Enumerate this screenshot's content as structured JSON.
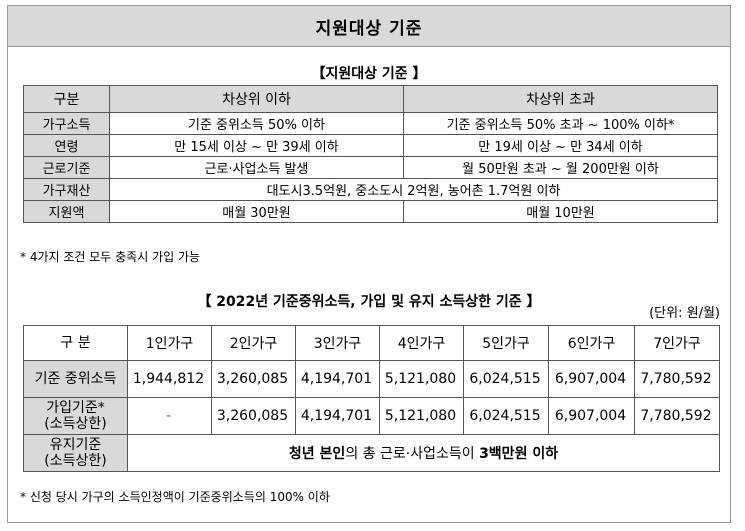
{
  "header_title": "지원대상 기준",
  "section1": {
    "title": "【지원대상 기준 】",
    "columns": [
      "구분",
      "차상위 이하",
      "차상위 초과"
    ],
    "rows": [
      {
        "label": "가구소득",
        "a": "기준 중위소득 50% 이하",
        "b": "기준 중위소득 50% 초과 ~ 100% 이하*"
      },
      {
        "label": "연령",
        "a": "만 15세 이상 ~ 만 39세 이하",
        "b": "만 19세 이상 ~ 만 34세 이하"
      },
      {
        "label": "근로기준",
        "a": "근로·사업소득 발생",
        "b": "월 50만원 초과 ~ 월 200만원 이하"
      },
      {
        "label": "가구재산",
        "merged": "대도시3.5억원, 중소도시 2억원, 농어촌 1.7억원 이하"
      },
      {
        "label": "지원액",
        "a": "매월 30만원",
        "b": "매월 10만원"
      }
    ],
    "note": "*  4가지 조건 모두 충족시 가입 가능"
  },
  "section2": {
    "title": "【 2022년 기준중위소득, 가입 및 유지 소득상한 기준 】",
    "unit": "(단위: 원/월)",
    "columns": [
      "구 분",
      "1인가구",
      "2인가구",
      "3인가구",
      "4인가구",
      "5인가구",
      "6인가구",
      "7인가구"
    ],
    "rows": [
      {
        "label": "기준 중위소득",
        "values": [
          "1,944,812",
          "3,260,085",
          "4,194,701",
          "5,121,080",
          "6,024,515",
          "6,907,004",
          "7,780,592"
        ]
      },
      {
        "label_line1": "가입기준*",
        "label_line2": "(소득상한)",
        "values": [
          "-",
          "3,260,085",
          "4,194,701",
          "5,121,080",
          "6,024,515",
          "6,907,004",
          "7,780,592"
        ]
      }
    ],
    "maintain": {
      "label_line1": "유지기준",
      "label_line2": "(소득상한)",
      "parts": [
        "청년 본인",
        "의 총 근로·사업소득이 ",
        "3백만원 이하"
      ]
    },
    "note": "*  신청 당시 가구의 소득인정액이 기준중위소득의 100% 이하"
  }
}
